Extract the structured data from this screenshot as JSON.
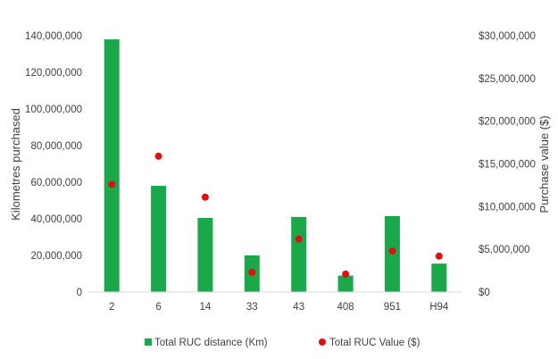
{
  "chart_data": {
    "type": "bar",
    "categories": [
      "2",
      "6",
      "14",
      "33",
      "43",
      "408",
      "951",
      "H94"
    ],
    "series": [
      {
        "name": "Total RUC distance (Km)",
        "kind": "bar",
        "axis": "left",
        "color": "#1aa84a",
        "values": [
          138000000,
          58000000,
          40500000,
          20000000,
          41000000,
          9000000,
          41500000,
          15500000
        ]
      },
      {
        "name": "Total RUC Value ($)",
        "kind": "scatter",
        "axis": "right",
        "color": "#e01010",
        "values": [
          12600000,
          15900000,
          11100000,
          2300000,
          6200000,
          2100000,
          4800000,
          4200000
        ]
      }
    ],
    "ylabel": "Kilometres purchased",
    "y2label": "Purchase value ($)",
    "ylim": [
      0,
      140000000
    ],
    "y2lim": [
      0,
      30000000
    ],
    "yticks": [
      "0",
      "20,000,000",
      "40,000,000",
      "60,000,000",
      "80,000,000",
      "100,000,000",
      "120,000,000",
      "140,000,000"
    ],
    "y2ticks": [
      "$0",
      "$5,000,000",
      "$10,000,000",
      "$15,000,000",
      "$20,000,000",
      "$25,000,000",
      "$30,000,000"
    ],
    "legend": [
      "Total RUC distance (Km)",
      "Total RUC Value ($)"
    ],
    "legend_position": "bottom",
    "grid": false
  }
}
